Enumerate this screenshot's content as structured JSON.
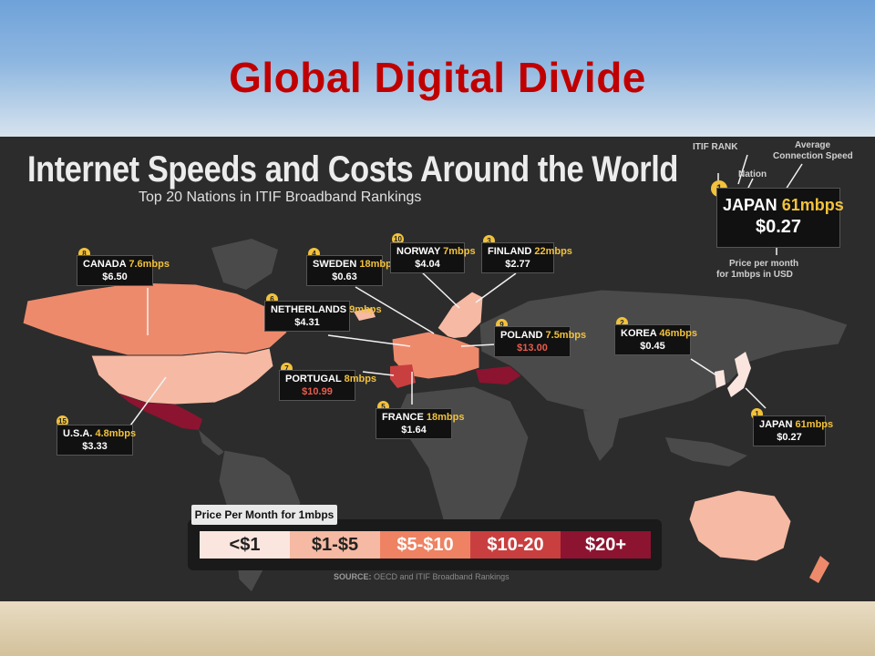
{
  "slide": {
    "title": "Global Digital Divide"
  },
  "infographic": {
    "title": "Internet Speeds and Costs Around the World",
    "subtitle": "Top 20 Nations in ITIF Broadband Rankings",
    "key": {
      "itif_rank_label": "ITIF RANK",
      "avg_speed_label_1": "Average",
      "avg_speed_label_2": "Connection Speed",
      "nation_label": "Nation",
      "rank": "1",
      "nation": "JAPAN",
      "speed": "61mbps",
      "price": "$0.27",
      "price_label_1": "Price per month",
      "price_label_2": "for 1mbps in USD"
    },
    "callouts": [
      {
        "id": "canada",
        "rank": "8",
        "nation": "CANADA",
        "speed": "7.6mbps",
        "price": "$6.50",
        "price_red": false
      },
      {
        "id": "sweden",
        "rank": "4",
        "nation": "SWEDEN",
        "speed": "18mbps",
        "price": "$0.63",
        "price_red": false
      },
      {
        "id": "norway",
        "rank": "10",
        "nation": "NORWAY",
        "speed": "7mbps",
        "price": "$4.04",
        "price_red": false
      },
      {
        "id": "finland",
        "rank": "3",
        "nation": "FINLAND",
        "speed": "22mbps",
        "price": "$2.77",
        "price_red": false
      },
      {
        "id": "netherlands",
        "rank": "6",
        "nation": "NETHERLANDS",
        "speed": "9mbps",
        "price": "$4.31",
        "price_red": false
      },
      {
        "id": "poland",
        "rank": "9",
        "nation": "POLAND",
        "speed": "7.5mbps",
        "price": "$13.00",
        "price_red": true
      },
      {
        "id": "korea",
        "rank": "2",
        "nation": "KOREA",
        "speed": "46mbps",
        "price": "$0.45",
        "price_red": false
      },
      {
        "id": "portugal",
        "rank": "7",
        "nation": "PORTUGAL",
        "speed": "8mbps",
        "price": "$10.99",
        "price_red": true
      },
      {
        "id": "france",
        "rank": "5",
        "nation": "FRANCE",
        "speed": "18mbps",
        "price": "$1.64",
        "price_red": false
      },
      {
        "id": "japan",
        "rank": "1",
        "nation": "JAPAN",
        "speed": "61mbps",
        "price": "$0.27",
        "price_red": false
      },
      {
        "id": "usa",
        "rank": "15",
        "nation": "U.S.A.",
        "speed": "4.8mbps",
        "price": "$3.33",
        "price_red": false
      }
    ],
    "legend": {
      "label": "Price Per Month for 1mbps",
      "items": [
        {
          "label": "<$1",
          "color": "#fbe6df",
          "text_color": "#222222"
        },
        {
          "label": "$1-$5",
          "color": "#f6b9a3",
          "text_color": "#222222"
        },
        {
          "label": "$5-$10",
          "color": "#ee8262",
          "text_color": "#ffffff"
        },
        {
          "label": "$10-20",
          "color": "#c93f3f",
          "text_color": "#ffffff"
        },
        {
          "label": "$20+",
          "color": "#8c1430",
          "text_color": "#ffffff"
        }
      ]
    },
    "source_label": "SOURCE:",
    "source_text": "OECD and ITIF Broadband Rankings"
  },
  "colors": {
    "title_red": "#c00000",
    "background_dark": "#2c2c2c",
    "land_gray": "#4a4a4a",
    "highlight_yellow": "#f2c23c"
  }
}
